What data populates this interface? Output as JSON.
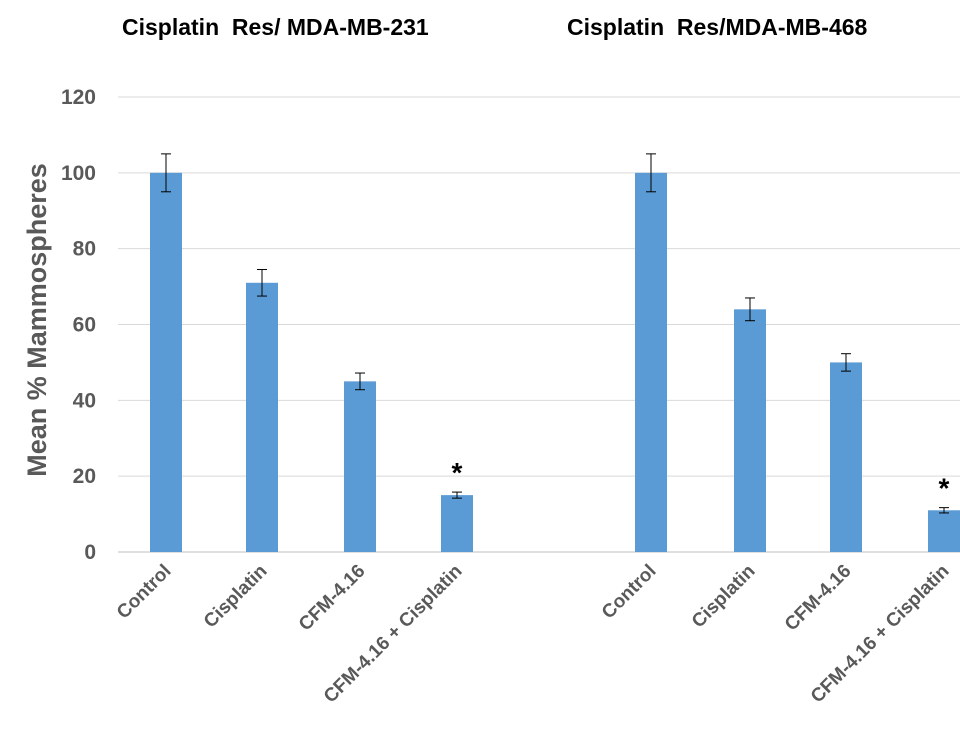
{
  "chart_data": {
    "type": "bar",
    "ylabel": "Mean % Mammospheres",
    "ylim": [
      0,
      120
    ],
    "yticks": [
      0,
      20,
      40,
      60,
      80,
      100,
      120
    ],
    "grid": true,
    "bar_color": "#5B9BD5",
    "grid_color": "#D9D9D9",
    "panels": [
      {
        "title": "Cisplatin  Res/ MDA-MB-231",
        "categories": [
          "Control",
          "Cisplatin",
          "CFM-4.16",
          "CFM-4.16 + Cisplatin"
        ],
        "values": [
          100,
          71,
          45,
          15
        ],
        "errors": [
          5,
          3.5,
          2.2,
          0.8
        ],
        "annotations": [
          "",
          "",
          "",
          "*"
        ]
      },
      {
        "title": "Cisplatin  Res/MDA-MB-468",
        "categories": [
          "Control",
          "Cisplatin",
          "CFM-4.16",
          "CFM-4.16 + Cisplatin"
        ],
        "values": [
          100,
          64,
          50,
          11
        ],
        "errors": [
          5,
          3,
          2.3,
          0.7
        ],
        "annotations": [
          "",
          "",
          "",
          "*"
        ]
      }
    ]
  }
}
